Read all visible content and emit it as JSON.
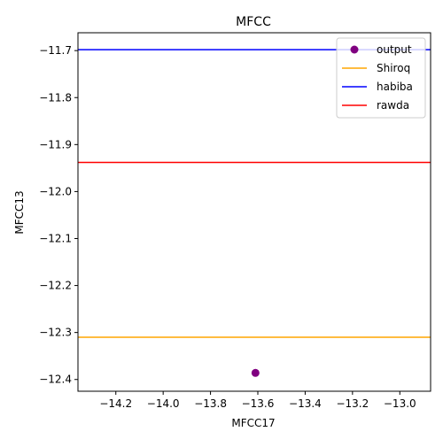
{
  "chart_data": {
    "type": "scatter",
    "title": "MFCC",
    "xlabel": "MFCC17",
    "ylabel": "MFCC13",
    "xlim": [
      -14.36,
      -12.87
    ],
    "ylim": [
      -12.425,
      -11.662
    ],
    "xticks": [
      -14.2,
      -14.0,
      -13.8,
      -13.6,
      -13.4,
      -13.2,
      -13.0
    ],
    "xtick_labels": [
      "−14.2",
      "−14.0",
      "−13.8",
      "−13.6",
      "−13.4",
      "−13.2",
      "−13.0"
    ],
    "yticks": [
      -12.4,
      -12.3,
      -12.2,
      -12.1,
      -12.0,
      -11.9,
      -11.8,
      -11.7
    ],
    "ytick_labels": [
      "−12.4",
      "−12.3",
      "−12.2",
      "−12.1",
      "−12.0",
      "−11.9",
      "−11.8",
      "−11.7"
    ],
    "grid": false,
    "legend_position": "top-right",
    "series": [
      {
        "name": "output",
        "kind": "point",
        "x": -13.61,
        "y": -12.386,
        "color": "#800080"
      },
      {
        "name": "Shiroq",
        "kind": "hline",
        "y": -12.31,
        "color": "#ffa500"
      },
      {
        "name": "habiba",
        "kind": "hline",
        "y": -11.698,
        "color": "#0000ff"
      },
      {
        "name": "rawda",
        "kind": "hline",
        "y": -11.938,
        "color": "#ff0000"
      }
    ]
  }
}
